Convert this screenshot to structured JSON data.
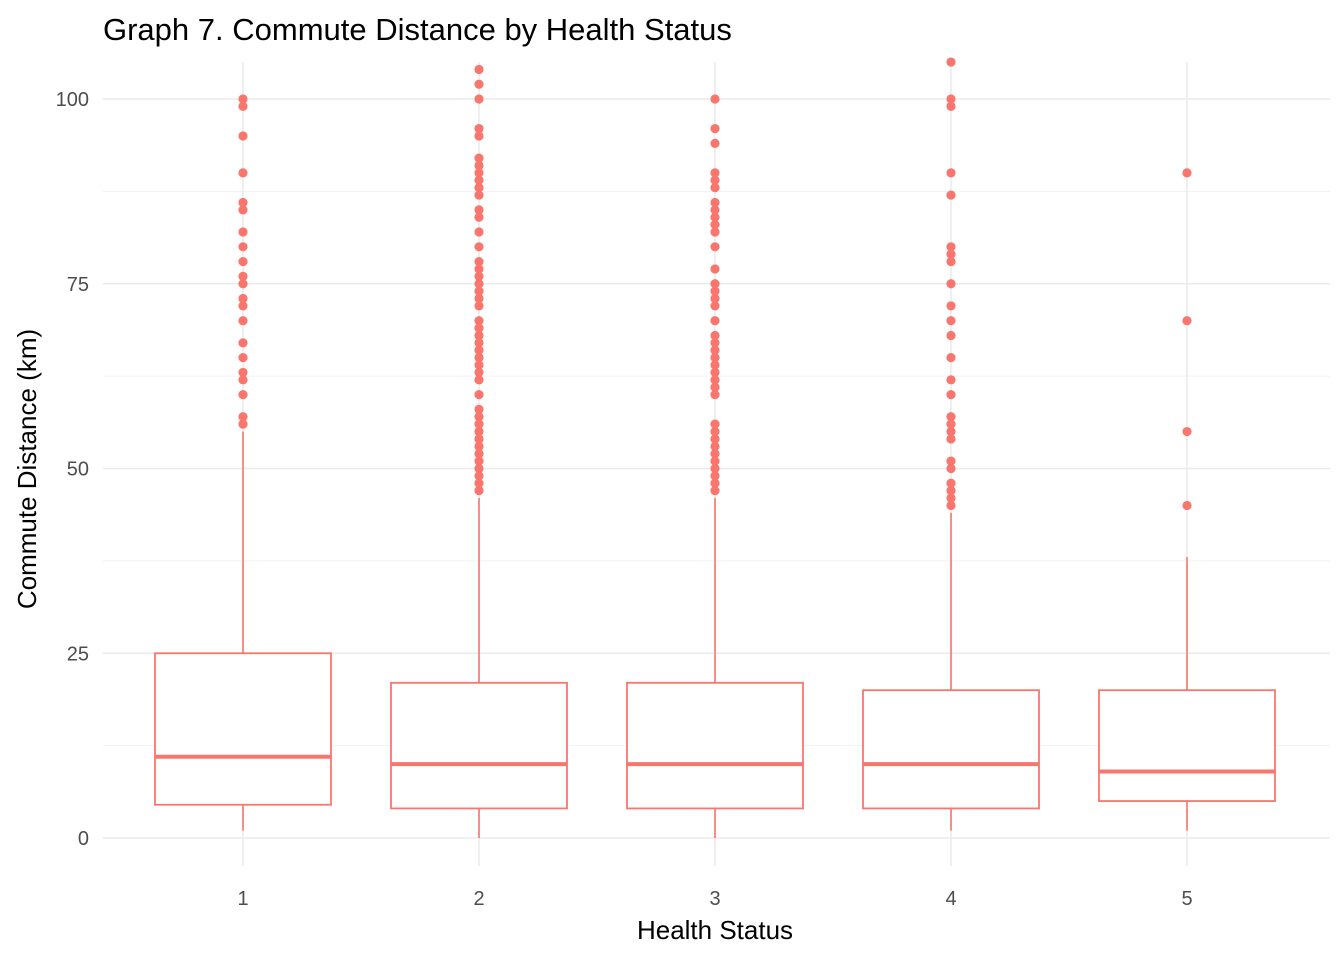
{
  "chart_data": {
    "type": "boxplot",
    "title": "Graph 7. Commute Distance by Health Status",
    "xlabel": "Health Status",
    "ylabel": "Commute Distance (km)",
    "ylim": [
      -5,
      105
    ],
    "yticks": [
      0,
      25,
      50,
      75,
      100
    ],
    "grid": true,
    "color": "#F8766D",
    "categories": [
      "1",
      "2",
      "3",
      "4",
      "5"
    ],
    "boxes": [
      {
        "category": "1",
        "whisker_low": 1,
        "q1": 4.5,
        "median": 11,
        "q3": 25,
        "whisker_high": 55,
        "outliers": [
          56,
          57,
          60,
          62,
          63,
          65,
          67,
          70,
          72,
          73,
          75,
          76,
          78,
          80,
          82,
          85,
          86,
          90,
          95,
          99,
          100
        ]
      },
      {
        "category": "2",
        "whisker_low": 0,
        "q1": 4,
        "median": 10,
        "q3": 21,
        "whisker_high": 46,
        "outliers": [
          47,
          48,
          49,
          50,
          51,
          52,
          53,
          54,
          55,
          56,
          57,
          58,
          60,
          62,
          63,
          64,
          65,
          66,
          67,
          68,
          69,
          70,
          72,
          73,
          74,
          75,
          76,
          77,
          78,
          80,
          82,
          84,
          85,
          87,
          88,
          89,
          90,
          91,
          92,
          95,
          96,
          100,
          102,
          104
        ]
      },
      {
        "category": "3",
        "whisker_low": 0,
        "q1": 4,
        "median": 10,
        "q3": 21,
        "whisker_high": 46,
        "outliers": [
          47,
          48,
          49,
          50,
          51,
          52,
          53,
          54,
          55,
          56,
          60,
          61,
          62,
          63,
          64,
          65,
          66,
          67,
          68,
          70,
          72,
          73,
          74,
          75,
          77,
          80,
          82,
          83,
          84,
          85,
          86,
          88,
          89,
          90,
          94,
          96,
          100
        ]
      },
      {
        "category": "4",
        "whisker_low": 1,
        "q1": 4,
        "median": 10,
        "q3": 20,
        "whisker_high": 44,
        "outliers": [
          45,
          46,
          47,
          48,
          50,
          51,
          54,
          55,
          56,
          57,
          60,
          62,
          65,
          68,
          70,
          72,
          75,
          78,
          79,
          80,
          87,
          90,
          99,
          100,
          105
        ]
      },
      {
        "category": "5",
        "whisker_low": 1,
        "q1": 5,
        "median": 9,
        "q3": 20,
        "whisker_high": 38,
        "outliers": [
          45,
          55,
          70,
          90
        ]
      }
    ]
  }
}
